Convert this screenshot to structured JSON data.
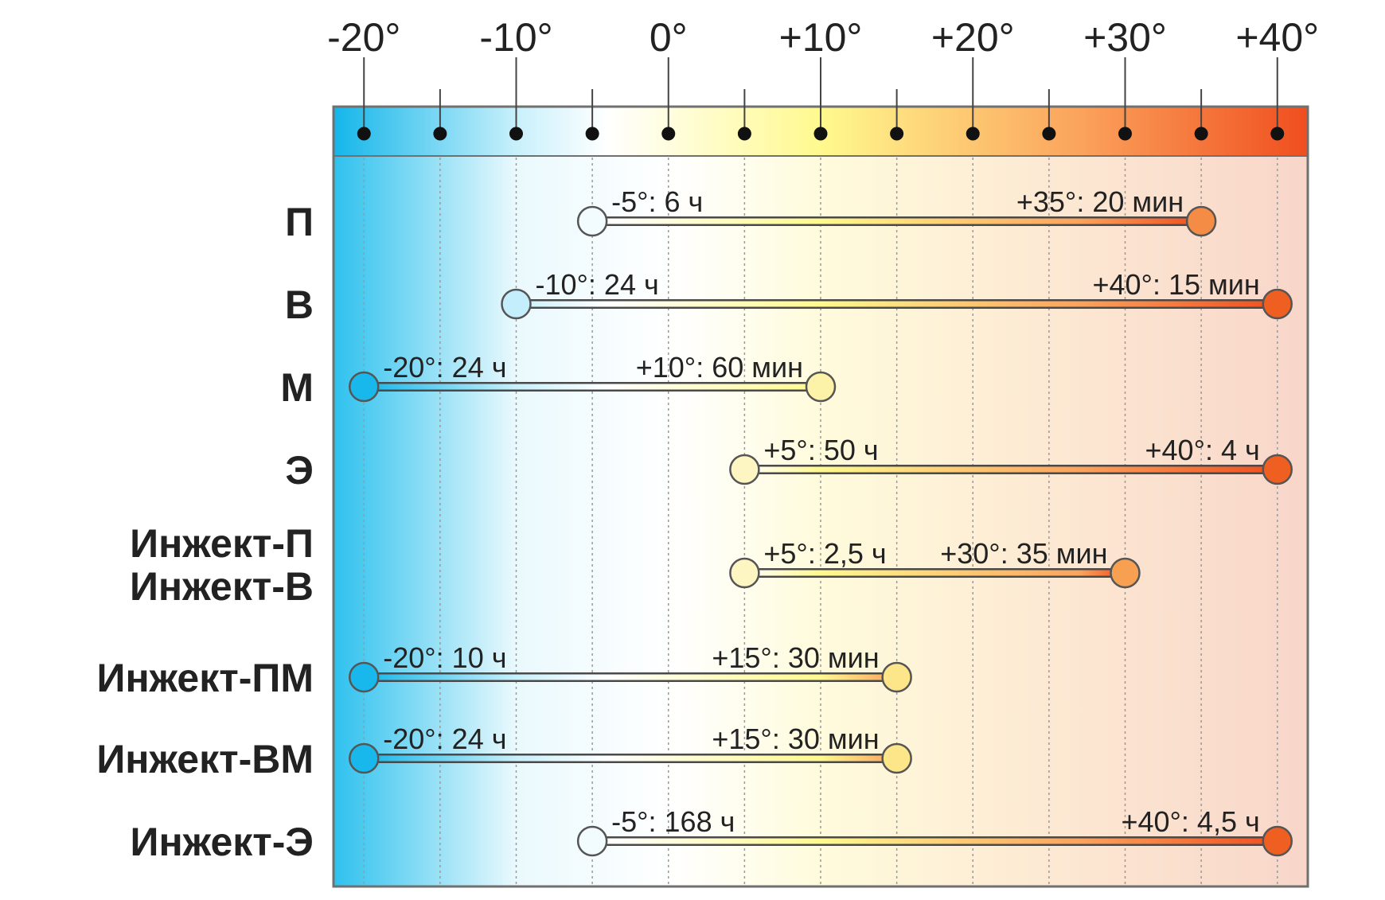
{
  "chart_data": {
    "type": "range-bar",
    "xlabel": "",
    "ylabel": "",
    "x_unit": "°C",
    "xlim": [
      -22,
      42
    ],
    "major_ticks": [
      -20,
      -10,
      0,
      10,
      20,
      30,
      40
    ],
    "minor_ticks": [
      -20,
      -15,
      -10,
      -5,
      0,
      5,
      10,
      15,
      20,
      25,
      30,
      35,
      40
    ],
    "tick_labels": [
      "-20°",
      "-10°",
      "0°",
      "+10°",
      "+20°",
      "+30°",
      "+40°"
    ],
    "gradient_colors": [
      {
        "at": -22,
        "color": "#14b6ea"
      },
      {
        "at": -10,
        "color": "#c8f0fb"
      },
      {
        "at": -4,
        "color": "#ffffff"
      },
      {
        "at": 10,
        "color": "#fff98e"
      },
      {
        "at": 27,
        "color": "#fba35c"
      },
      {
        "at": 42,
        "color": "#f04e1f"
      }
    ],
    "background_tint": [
      {
        "at": -22,
        "color": "#2ec1ee"
      },
      {
        "at": -10,
        "color": "#eaf9fd"
      },
      {
        "at": 0,
        "color": "#ffffff"
      },
      {
        "at": 10,
        "color": "#fffbdc"
      },
      {
        "at": 25,
        "color": "#fde9d3"
      },
      {
        "at": 42,
        "color": "#f8d6c9"
      }
    ],
    "series": [
      {
        "name": [
          "П"
        ],
        "min": -5,
        "min_label": "-5°: 6 ч",
        "max": 35,
        "max_label": "+35°: 20 мин",
        "min_color": "#f2fbfe",
        "max_color": "#f58c45"
      },
      {
        "name": [
          "В"
        ],
        "min": -10,
        "min_label": "-10°: 24 ч",
        "max": 40,
        "max_label": "+40°: 15 мин",
        "min_color": "#c4eefb",
        "max_color": "#f05f22"
      },
      {
        "name": [
          "М"
        ],
        "min": -20,
        "min_label": "-20°: 24 ч",
        "max": 10,
        "max_label": "+10°: 60 мин",
        "min_color": "#19b8ec",
        "max_color": "#fdf3a8"
      },
      {
        "name": [
          "Э"
        ],
        "min": 5,
        "min_label": "+5°: 50 ч",
        "max": 40,
        "max_label": "+40°: 4 ч",
        "min_color": "#fdf6c2",
        "max_color": "#f05f22"
      },
      {
        "name": [
          "Инжект-П",
          "Инжект-В"
        ],
        "min": 5,
        "min_label": "+5°: 2,5 ч",
        "max": 30,
        "max_label": "+30°: 35 мин",
        "min_color": "#fdf6c2",
        "max_color": "#f8a052"
      },
      {
        "name": [
          "Инжект-ПМ"
        ],
        "min": -20,
        "min_label": "-20°: 10 ч",
        "max": 15,
        "max_label": "+15°: 30 мин",
        "min_color": "#19b8ec",
        "max_color": "#fde58a"
      },
      {
        "name": [
          "Инжект-ВМ"
        ],
        "min": -20,
        "min_label": "-20°: 24 ч",
        "max": 15,
        "max_label": "+15°: 30 мин",
        "min_color": "#19b8ec",
        "max_color": "#fde58a"
      },
      {
        "name": [
          "Инжект-Э"
        ],
        "min": -5,
        "min_label": "-5°: 168 ч",
        "max": 40,
        "max_label": "+40°: 4,5 ч",
        "min_color": "#f2fbfe",
        "max_color": "#f05f22"
      }
    ]
  }
}
